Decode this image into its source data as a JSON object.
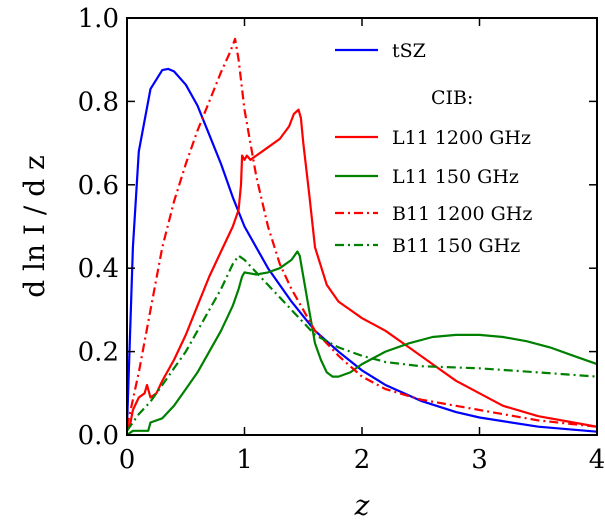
{
  "chart_data": {
    "type": "line",
    "xlabel": "z",
    "ylabel": "d ln I / d z",
    "xlim": [
      0,
      4
    ],
    "ylim": [
      0,
      1.0
    ],
    "xticks": [
      "0",
      "1",
      "2",
      "3",
      "4"
    ],
    "yticks": [
      "0.0",
      "0.2",
      "0.4",
      "0.6",
      "0.8",
      "1.0"
    ],
    "grid": false,
    "legend_position": "top-right",
    "legend": {
      "header": "CIB:"
    },
    "series": [
      {
        "name": "tSZ",
        "color": "#0000ff",
        "style": "solid",
        "points": [
          [
            0,
            0.02
          ],
          [
            0.05,
            0.45
          ],
          [
            0.1,
            0.68
          ],
          [
            0.2,
            0.83
          ],
          [
            0.3,
            0.875
          ],
          [
            0.35,
            0.878
          ],
          [
            0.4,
            0.872
          ],
          [
            0.5,
            0.84
          ],
          [
            0.6,
            0.79
          ],
          [
            0.7,
            0.72
          ],
          [
            0.8,
            0.65
          ],
          [
            0.9,
            0.57
          ],
          [
            1.0,
            0.5
          ],
          [
            1.2,
            0.4
          ],
          [
            1.4,
            0.32
          ],
          [
            1.6,
            0.25
          ],
          [
            1.8,
            0.2
          ],
          [
            2.0,
            0.155
          ],
          [
            2.2,
            0.12
          ],
          [
            2.5,
            0.082
          ],
          [
            2.8,
            0.055
          ],
          [
            3.0,
            0.042
          ],
          [
            3.5,
            0.02
          ],
          [
            4.0,
            0.008
          ]
        ]
      },
      {
        "name": "L11 1200 GHz",
        "color": "#ff0000",
        "style": "solid",
        "points": [
          [
            0,
            0.01
          ],
          [
            0.03,
            0.03
          ],
          [
            0.05,
            0.06
          ],
          [
            0.1,
            0.09
          ],
          [
            0.15,
            0.1
          ],
          [
            0.17,
            0.12
          ],
          [
            0.2,
            0.09
          ],
          [
            0.25,
            0.1
          ],
          [
            0.3,
            0.13
          ],
          [
            0.4,
            0.18
          ],
          [
            0.5,
            0.24
          ],
          [
            0.6,
            0.31
          ],
          [
            0.7,
            0.38
          ],
          [
            0.8,
            0.44
          ],
          [
            0.9,
            0.5
          ],
          [
            0.95,
            0.54
          ],
          [
            0.97,
            0.6
          ],
          [
            0.98,
            0.67
          ],
          [
            1.0,
            0.66
          ],
          [
            1.02,
            0.67
          ],
          [
            1.05,
            0.66
          ],
          [
            1.1,
            0.67
          ],
          [
            1.2,
            0.69
          ],
          [
            1.3,
            0.71
          ],
          [
            1.38,
            0.74
          ],
          [
            1.42,
            0.77
          ],
          [
            1.46,
            0.78
          ],
          [
            1.48,
            0.76
          ],
          [
            1.5,
            0.7
          ],
          [
            1.55,
            0.58
          ],
          [
            1.6,
            0.45
          ],
          [
            1.7,
            0.36
          ],
          [
            1.8,
            0.32
          ],
          [
            1.9,
            0.3
          ],
          [
            2.0,
            0.28
          ],
          [
            2.2,
            0.25
          ],
          [
            2.4,
            0.21
          ],
          [
            2.6,
            0.17
          ],
          [
            2.8,
            0.13
          ],
          [
            3.0,
            0.1
          ],
          [
            3.2,
            0.07
          ],
          [
            3.5,
            0.045
          ],
          [
            3.8,
            0.03
          ],
          [
            4.0,
            0.02
          ]
        ]
      },
      {
        "name": "L11 150 GHz",
        "color": "#008000",
        "style": "solid",
        "points": [
          [
            0,
            0.0
          ],
          [
            0.05,
            0.01
          ],
          [
            0.18,
            0.01
          ],
          [
            0.2,
            0.03
          ],
          [
            0.3,
            0.04
          ],
          [
            0.4,
            0.07
          ],
          [
            0.5,
            0.11
          ],
          [
            0.6,
            0.15
          ],
          [
            0.7,
            0.2
          ],
          [
            0.8,
            0.25
          ],
          [
            0.9,
            0.31
          ],
          [
            0.95,
            0.35
          ],
          [
            0.98,
            0.38
          ],
          [
            1.0,
            0.39
          ],
          [
            1.1,
            0.385
          ],
          [
            1.2,
            0.39
          ],
          [
            1.3,
            0.4
          ],
          [
            1.4,
            0.42
          ],
          [
            1.45,
            0.44
          ],
          [
            1.47,
            0.43
          ],
          [
            1.5,
            0.38
          ],
          [
            1.55,
            0.3
          ],
          [
            1.6,
            0.22
          ],
          [
            1.65,
            0.18
          ],
          [
            1.7,
            0.15
          ],
          [
            1.75,
            0.14
          ],
          [
            1.8,
            0.14
          ],
          [
            1.9,
            0.15
          ],
          [
            2.0,
            0.17
          ],
          [
            2.2,
            0.2
          ],
          [
            2.4,
            0.22
          ],
          [
            2.6,
            0.235
          ],
          [
            2.8,
            0.24
          ],
          [
            3.0,
            0.24
          ],
          [
            3.2,
            0.235
          ],
          [
            3.4,
            0.225
          ],
          [
            3.6,
            0.21
          ],
          [
            3.8,
            0.19
          ],
          [
            4.0,
            0.17
          ]
        ]
      },
      {
        "name": "B11 1200 GHz",
        "color": "#ff0000",
        "style": "dashdot",
        "points": [
          [
            0,
            0.02
          ],
          [
            0.1,
            0.15
          ],
          [
            0.2,
            0.3
          ],
          [
            0.3,
            0.45
          ],
          [
            0.4,
            0.56
          ],
          [
            0.5,
            0.65
          ],
          [
            0.6,
            0.73
          ],
          [
            0.7,
            0.8
          ],
          [
            0.8,
            0.87
          ],
          [
            0.88,
            0.92
          ],
          [
            0.92,
            0.95
          ],
          [
            0.95,
            0.9
          ],
          [
            1.0,
            0.78
          ],
          [
            1.1,
            0.62
          ],
          [
            1.2,
            0.5
          ],
          [
            1.3,
            0.41
          ],
          [
            1.4,
            0.35
          ],
          [
            1.5,
            0.3
          ],
          [
            1.6,
            0.25
          ],
          [
            1.8,
            0.19
          ],
          [
            2.0,
            0.14
          ],
          [
            2.2,
            0.11
          ],
          [
            2.5,
            0.085
          ],
          [
            2.8,
            0.07
          ],
          [
            3.0,
            0.06
          ],
          [
            3.5,
            0.035
          ],
          [
            4.0,
            0.02
          ]
        ]
      },
      {
        "name": "B11 150 GHz",
        "color": "#008000",
        "style": "dashdot",
        "points": [
          [
            0,
            0.01
          ],
          [
            0.1,
            0.05
          ],
          [
            0.2,
            0.08
          ],
          [
            0.3,
            0.12
          ],
          [
            0.4,
            0.16
          ],
          [
            0.5,
            0.2
          ],
          [
            0.6,
            0.25
          ],
          [
            0.7,
            0.3
          ],
          [
            0.8,
            0.35
          ],
          [
            0.9,
            0.41
          ],
          [
            0.95,
            0.43
          ],
          [
            1.0,
            0.42
          ],
          [
            1.1,
            0.39
          ],
          [
            1.2,
            0.36
          ],
          [
            1.3,
            0.33
          ],
          [
            1.4,
            0.3
          ],
          [
            1.5,
            0.27
          ],
          [
            1.6,
            0.24
          ],
          [
            1.8,
            0.21
          ],
          [
            2.0,
            0.19
          ],
          [
            2.2,
            0.175
          ],
          [
            2.5,
            0.165
          ],
          [
            3.0,
            0.16
          ],
          [
            3.5,
            0.15
          ],
          [
            4.0,
            0.14
          ]
        ]
      }
    ]
  }
}
